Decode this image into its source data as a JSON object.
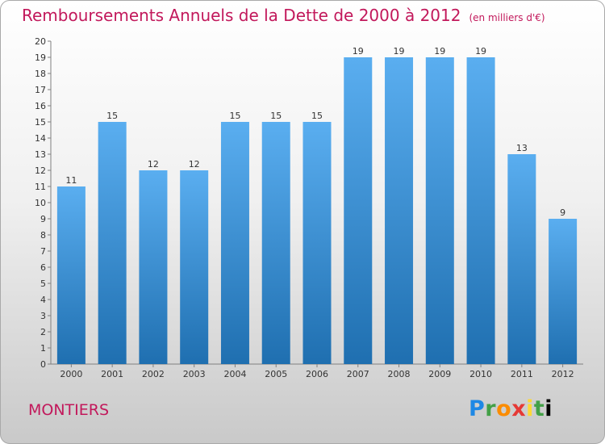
{
  "title": "Remboursements Annuels de la Dette de 2000 à 2012",
  "unit": "(en milliers d'€)",
  "commune": "MONTIERS",
  "logo": "Proxiti",
  "colors": {
    "accent": "#c2185b",
    "bar_top": "#5aaef0",
    "bar_bottom": "#1f6fb0"
  },
  "chart_data": {
    "type": "bar",
    "title": "Remboursements Annuels de la Dette de 2000 à 2012",
    "subtitle": "(en milliers d'€)",
    "xlabel": "",
    "ylabel": "",
    "categories": [
      "2000",
      "2001",
      "2002",
      "2003",
      "2004",
      "2005",
      "2006",
      "2007",
      "2008",
      "2009",
      "2010",
      "2011",
      "2012"
    ],
    "values": [
      11,
      15,
      12,
      12,
      15,
      15,
      15,
      19,
      19,
      19,
      19,
      13,
      9
    ],
    "ylim": [
      0,
      20
    ],
    "yticks": [
      0,
      1,
      2,
      3,
      4,
      5,
      6,
      7,
      8,
      9,
      10,
      11,
      12,
      13,
      14,
      15,
      16,
      17,
      18,
      19,
      20
    ],
    "grid": false,
    "data_labels": true
  }
}
